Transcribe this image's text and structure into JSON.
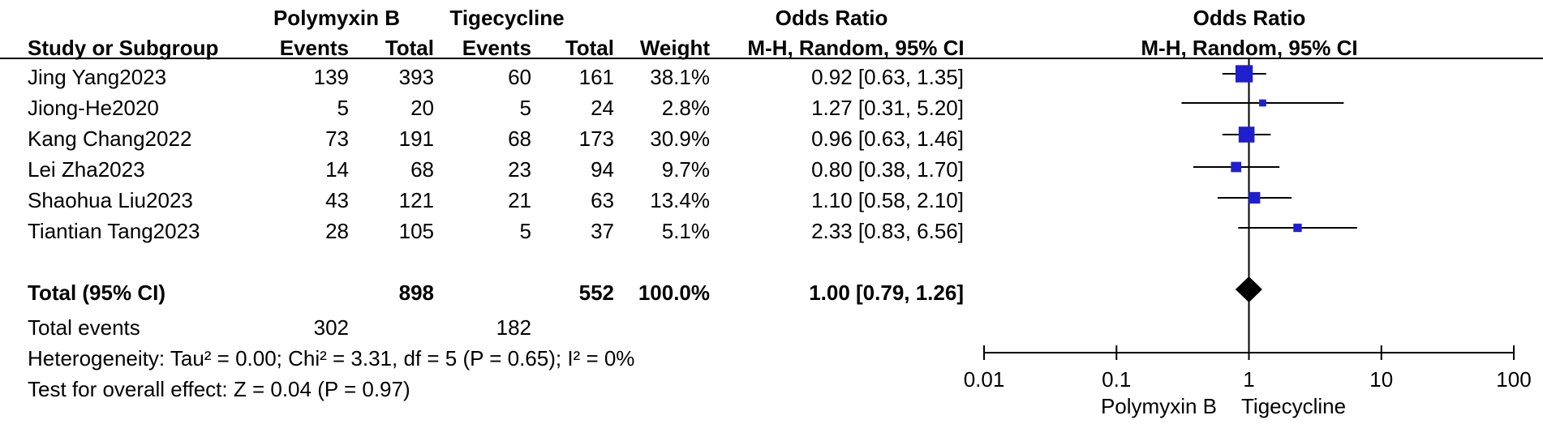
{
  "header": {
    "group1_label": "Polymyxin B",
    "group2_label": "Tigecycline",
    "or_col_title": "Odds Ratio",
    "plot_col_title": "Odds Ratio",
    "col_study": "Study or Subgroup",
    "col_events1": "Events",
    "col_total1": "Total",
    "col_events2": "Events",
    "col_total2": "Total",
    "col_weight": "Weight",
    "col_ci": "M-H, Random, 95% CI",
    "plot_ci": "M-H, Random, 95% CI"
  },
  "studies": [
    {
      "name": "Jing Yang2023",
      "events1": "139",
      "total1": "393",
      "events2": "60",
      "total2": "161",
      "weight": "38.1%",
      "ci": "0.92 [0.63, 1.35]"
    },
    {
      "name": "Jiong-He2020",
      "events1": "5",
      "total1": "20",
      "events2": "5",
      "total2": "24",
      "weight": "2.8%",
      "ci": "1.27 [0.31, 5.20]"
    },
    {
      "name": "Kang Chang2022",
      "events1": "73",
      "total1": "191",
      "events2": "68",
      "total2": "173",
      "weight": "30.9%",
      "ci": "0.96 [0.63, 1.46]"
    },
    {
      "name": "Lei Zha2023",
      "events1": "14",
      "total1": "68",
      "events2": "23",
      "total2": "94",
      "weight": "9.7%",
      "ci": "0.80 [0.38, 1.70]"
    },
    {
      "name": "Shaohua Liu2023",
      "events1": "43",
      "total1": "121",
      "events2": "21",
      "total2": "63",
      "weight": "13.4%",
      "ci": "1.10 [0.58, 2.10]"
    },
    {
      "name": "Tiantian Tang2023",
      "events1": "28",
      "total1": "105",
      "events2": "5",
      "total2": "37",
      "weight": "5.1%",
      "ci": "2.33 [0.83, 6.56]"
    }
  ],
  "total": {
    "label": "Total (95% CI)",
    "total1": "898",
    "total2": "552",
    "weight": "100.0%",
    "ci": "1.00 [0.79, 1.26]"
  },
  "total_events": {
    "label": "Total events",
    "events1": "302",
    "events2": "182"
  },
  "heterogeneity": "Heterogeneity: Tau² = 0.00; Chi² = 3.31, df = 5 (P = 0.65); I² = 0%",
  "overall_effect": "Test for overall effect: Z = 0.04 (P = 0.97)",
  "axis": {
    "left_label": "Polymyxin B",
    "right_label": "Tigecycline"
  },
  "chart_data": {
    "type": "forest",
    "scale": "log",
    "xlim": [
      0.01,
      100
    ],
    "ticks": [
      0.01,
      0.1,
      1,
      10,
      100
    ],
    "tick_labels": [
      "0.01",
      "0.1",
      "1",
      "10",
      "100"
    ],
    "reference_line": 1,
    "marker_color": "#1f1fd0",
    "diamond_color": "#000000",
    "points": [
      {
        "or": 0.92,
        "lo": 0.63,
        "hi": 1.35,
        "weight": 38.1
      },
      {
        "or": 1.27,
        "lo": 0.31,
        "hi": 5.2,
        "weight": 2.8
      },
      {
        "or": 0.96,
        "lo": 0.63,
        "hi": 1.46,
        "weight": 30.9
      },
      {
        "or": 0.8,
        "lo": 0.38,
        "hi": 1.7,
        "weight": 9.7
      },
      {
        "or": 1.1,
        "lo": 0.58,
        "hi": 2.1,
        "weight": 13.4
      },
      {
        "or": 2.33,
        "lo": 0.83,
        "hi": 6.56,
        "weight": 5.1
      }
    ],
    "pooled": {
      "or": 1.0,
      "lo": 0.79,
      "hi": 1.26
    }
  }
}
